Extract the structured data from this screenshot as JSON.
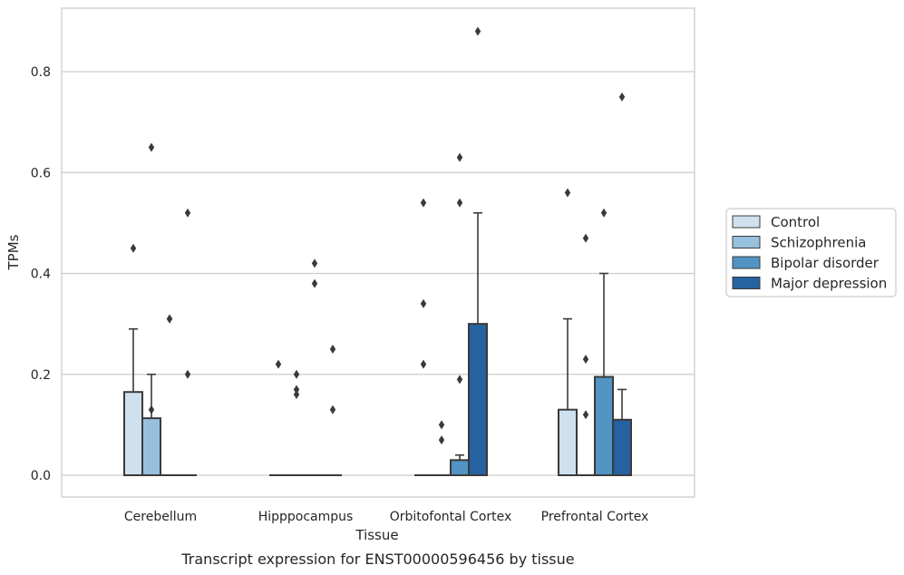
{
  "caption": "Transcript expression for ENST00000596456 by tissue",
  "colors": {
    "Control": "#cfe0ee",
    "Schizophrenia": "#97c0dc",
    "Bipolar disorder": "#5294c3",
    "Major depression": "#2662a0",
    "grid": "#cccccc",
    "edge": "#3a3a3a"
  },
  "chart_data": {
    "type": "bar",
    "xlabel": "Tissue",
    "ylabel": "TPMs",
    "ylim": [
      -0.04,
      0.925
    ],
    "yticks": [
      0.0,
      0.2,
      0.4,
      0.6,
      0.8
    ],
    "ytick_labels": [
      "0.0",
      "0.2",
      "0.4",
      "0.6",
      "0.8"
    ],
    "grid": true,
    "legend_position": "right",
    "categories": [
      "Cerebellum",
      "Hipppocampus",
      "Orbitofontal Cortex",
      "Prefrontal Cortex"
    ],
    "series": [
      {
        "name": "Control",
        "values": [
          0.165,
          0.0,
          0.0,
          0.13
        ],
        "whisker_high": [
          0.29,
          null,
          null,
          0.31
        ],
        "outliers": [
          [
            0.45
          ],
          [
            0.22
          ],
          [
            0.34,
            0.22,
            0.54
          ],
          [
            0.56
          ]
        ]
      },
      {
        "name": "Schizophrenia",
        "values": [
          0.113,
          0.0,
          0.0,
          0.0
        ],
        "whisker_high": [
          0.2,
          null,
          null,
          null
        ],
        "outliers": [
          [
            0.65,
            0.13
          ],
          [
            0.2,
            0.17,
            0.16
          ],
          [
            0.1,
            0.07
          ],
          [
            0.47,
            0.23,
            0.12
          ]
        ]
      },
      {
        "name": "Bipolar disorder",
        "values": [
          0.0,
          0.0,
          0.03,
          0.195
        ],
        "whisker_high": [
          null,
          null,
          0.04,
          0.4
        ],
        "outliers": [
          [
            0.31,
            0.31
          ],
          [
            0.42,
            0.38
          ],
          [
            0.63,
            0.54,
            0.19
          ],
          [
            0.52
          ]
        ]
      },
      {
        "name": "Major depression",
        "values": [
          0.0,
          0.0,
          0.3,
          0.11
        ],
        "whisker_high": [
          null,
          null,
          0.52,
          0.17
        ],
        "outliers": [
          [
            0.52,
            0.2
          ],
          [
            0.25,
            0.13
          ],
          [
            0.88
          ],
          [
            0.75
          ]
        ]
      }
    ]
  }
}
